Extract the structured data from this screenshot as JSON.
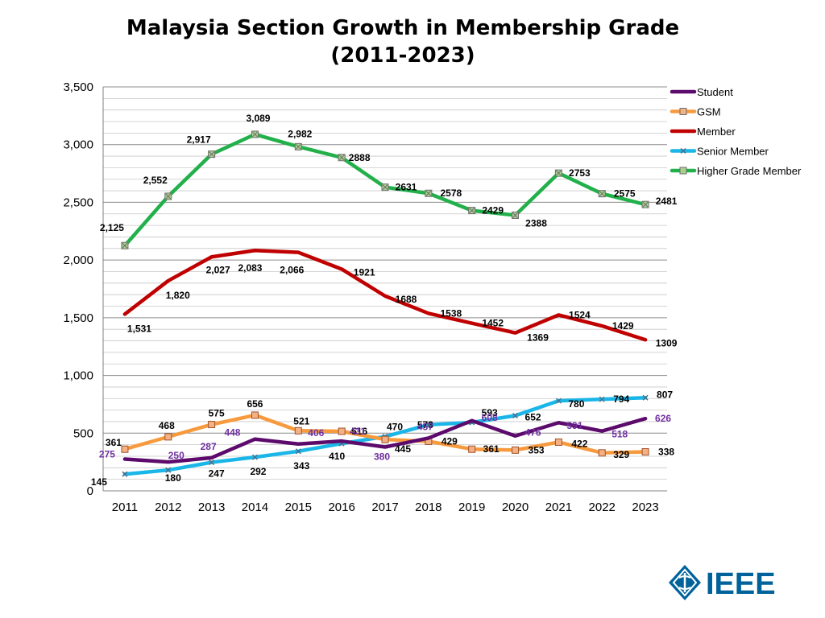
{
  "title_line1": "Malaysia Section Growth in Membership Grade",
  "title_line2": "(2011-2023)",
  "logo_text": "IEEE",
  "chart_data": {
    "type": "line",
    "title": "Malaysia Section Growth in Membership Grade (2011-2023)",
    "x": [
      "2011",
      "2012",
      "2013",
      "2014",
      "2015",
      "2016",
      "2017",
      "2018",
      "2019",
      "2020",
      "2021",
      "2022",
      "2023"
    ],
    "ylim": [
      0,
      3500
    ],
    "yticks": [
      0,
      500,
      1000,
      1500,
      2000,
      2500,
      3000,
      3500
    ],
    "ytick_labels": [
      "0",
      "500",
      "1,000",
      "1,500",
      "2,000",
      "2,500",
      "3,000",
      "3,500"
    ],
    "grid": true,
    "legend_position": "right",
    "series": [
      {
        "name": "Student",
        "color": "#5c0a6b",
        "marker": "none",
        "values": [
          275,
          250,
          287,
          448,
          406,
          431,
          380,
          457,
          608,
          476,
          591,
          518,
          626
        ],
        "labels": [
          "275",
          "250",
          "287",
          "448",
          "406",
          "431",
          "380",
          "457",
          "608",
          "476",
          "591",
          "518",
          "626"
        ],
        "label_color": "#7030a0"
      },
      {
        "name": "GSM",
        "color": "#f79a3e",
        "marker": "square",
        "values": [
          361,
          468,
          575,
          656,
          521,
          516,
          445,
          429,
          361,
          353,
          422,
          329,
          338
        ],
        "labels": [
          "361",
          "468",
          "575",
          "656",
          "521",
          "516",
          "445",
          "429",
          "361",
          "353",
          "422",
          "329",
          "338"
        ],
        "label_color": "#000000"
      },
      {
        "name": "Member",
        "color": "#c00000",
        "marker": "none",
        "values": [
          1531,
          1820,
          2027,
          2083,
          2066,
          1921,
          1688,
          1538,
          1452,
          1369,
          1524,
          1429,
          1309
        ],
        "labels": [
          "1,531",
          "1,820",
          "2,027",
          "2,083",
          "2,066",
          "1921",
          "1688",
          "1538",
          "1452",
          "1369",
          "1524",
          "1429",
          "1309"
        ],
        "label_color": "#000000"
      },
      {
        "name": "Senior Member",
        "color": "#1ab6e8",
        "marker": "x",
        "values": [
          145,
          180,
          247,
          292,
          343,
          410,
          470,
          573,
          593,
          652,
          780,
          794,
          807
        ],
        "labels": [
          "145",
          "180",
          "247",
          "292",
          "343",
          "410",
          "470",
          "573",
          "593",
          "652",
          "780",
          "794",
          "807"
        ],
        "label_color": "#000000"
      },
      {
        "name": "Higher Grade Member",
        "color": "#22b04b",
        "marker": "square-x",
        "values": [
          2125,
          2552,
          2917,
          3089,
          2982,
          2888,
          2631,
          2578,
          2429,
          2388,
          2753,
          2575,
          2481
        ],
        "labels": [
          "2,125",
          "2,552",
          "2,917",
          "3,089",
          "2,982",
          "2888",
          "2631",
          "2578",
          "2429",
          "2388",
          "2753",
          "2575",
          "2481"
        ],
        "label_color": "#000000"
      }
    ]
  }
}
